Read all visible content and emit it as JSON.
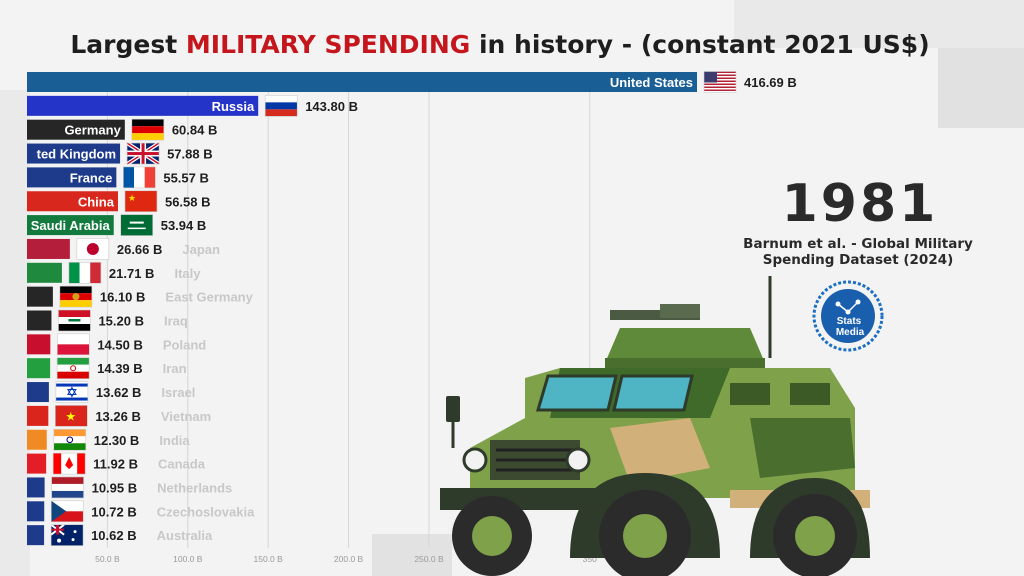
{
  "title": {
    "prefix": "Largest ",
    "highlight": "MILITARY SPENDING",
    "suffix": " in history  - (constant 2021 US$)"
  },
  "year": "1981",
  "source": {
    "line1": "Barnum et al. - Global Military",
    "line2": "Spending Dataset (2024)"
  },
  "logo": {
    "line1": "Stats",
    "line2": "Media"
  },
  "chart_data": {
    "type": "bar",
    "orientation": "horizontal",
    "unit_suffix": " B",
    "xlim": [
      0,
      416.69
    ],
    "x_ticks": [
      {
        "value": 50,
        "label": "50.0 B"
      },
      {
        "value": 100,
        "label": "100.0 B"
      },
      {
        "value": 150,
        "label": "150.0 B"
      },
      {
        "value": 200,
        "label": "200.0 B"
      },
      {
        "value": 250,
        "label": "250.0 B"
      },
      {
        "value": 350,
        "label": "350"
      }
    ],
    "grid": true,
    "bars": [
      {
        "name": "United States",
        "value": 416.69,
        "value_label": "416.69 B",
        "color": "#1a5e96",
        "flag": "us-flag",
        "name_inside": true
      },
      {
        "name": "Russia",
        "value": 143.8,
        "value_label": "143.80 B",
        "color": "#2433c8",
        "flag": "russia-flag",
        "name_inside": true
      },
      {
        "name": "Germany",
        "value": 60.84,
        "value_label": "60.84 B",
        "color": "#262626",
        "flag": "germany-flag",
        "name_inside": true
      },
      {
        "name": "ted Kingdom",
        "value": 57.88,
        "value_label": "57.88 B",
        "color": "#1d3b8a",
        "flag": "uk-flag",
        "name_inside": true
      },
      {
        "name": "France",
        "value": 55.57,
        "value_label": "55.57 B",
        "color": "#1d3b8a",
        "flag": "france-flag",
        "name_inside": true
      },
      {
        "name": "China",
        "value": 56.58,
        "value_label": "56.58 B",
        "color": "#d8281d",
        "flag": "china-flag",
        "name_inside": true
      },
      {
        "name": "Saudi Arabia",
        "value": 53.94,
        "value_label": "53.94 B",
        "color": "#137a3e",
        "flag": "saudi-flag",
        "name_inside": true
      },
      {
        "name": "Japan",
        "value": 26.66,
        "value_label": "26.66 B",
        "color": "#b41e3a",
        "flag": "japan-flag",
        "name_inside": false
      },
      {
        "name": "Italy",
        "value": 21.71,
        "value_label": "21.71 B",
        "color": "#1f8a3e",
        "flag": "italy-flag",
        "name_inside": false
      },
      {
        "name": "East Germany",
        "value": 16.1,
        "value_label": "16.10 B",
        "color": "#262626",
        "flag": "east-germany-flag",
        "name_inside": false
      },
      {
        "name": "Iraq",
        "value": 15.2,
        "value_label": "15.20 B",
        "color": "#262626",
        "flag": "iraq-flag",
        "name_inside": false
      },
      {
        "name": "Poland",
        "value": 14.5,
        "value_label": "14.50 B",
        "color": "#c8102e",
        "flag": "poland-flag",
        "name_inside": false
      },
      {
        "name": "Iran",
        "value": 14.39,
        "value_label": "14.39 B",
        "color": "#239f40",
        "flag": "iran-flag",
        "name_inside": false
      },
      {
        "name": "Israel",
        "value": 13.62,
        "value_label": "13.62 B",
        "color": "#1d3b8a",
        "flag": "israel-flag",
        "name_inside": false
      },
      {
        "name": "Vietnam",
        "value": 13.26,
        "value_label": "13.26 B",
        "color": "#da251d",
        "flag": "vietnam-flag",
        "name_inside": false
      },
      {
        "name": "India",
        "value": 12.3,
        "value_label": "12.30 B",
        "color": "#f08a24",
        "flag": "india-flag",
        "name_inside": false
      },
      {
        "name": "Canada",
        "value": 11.92,
        "value_label": "11.92 B",
        "color": "#e41e26",
        "flag": "canada-flag",
        "name_inside": false
      },
      {
        "name": "Netherlands",
        "value": 10.95,
        "value_label": "10.95 B",
        "color": "#1d3b8a",
        "flag": "netherlands-flag",
        "name_inside": false
      },
      {
        "name": "Czechoslovakia",
        "value": 10.72,
        "value_label": "10.72 B",
        "color": "#1d3b8a",
        "flag": "czechoslovakia-flag",
        "name_inside": false
      },
      {
        "name": "Australia",
        "value": 10.62,
        "value_label": "10.62 B",
        "color": "#1d3b8a",
        "flag": "australia-flag",
        "name_inside": false
      }
    ]
  }
}
